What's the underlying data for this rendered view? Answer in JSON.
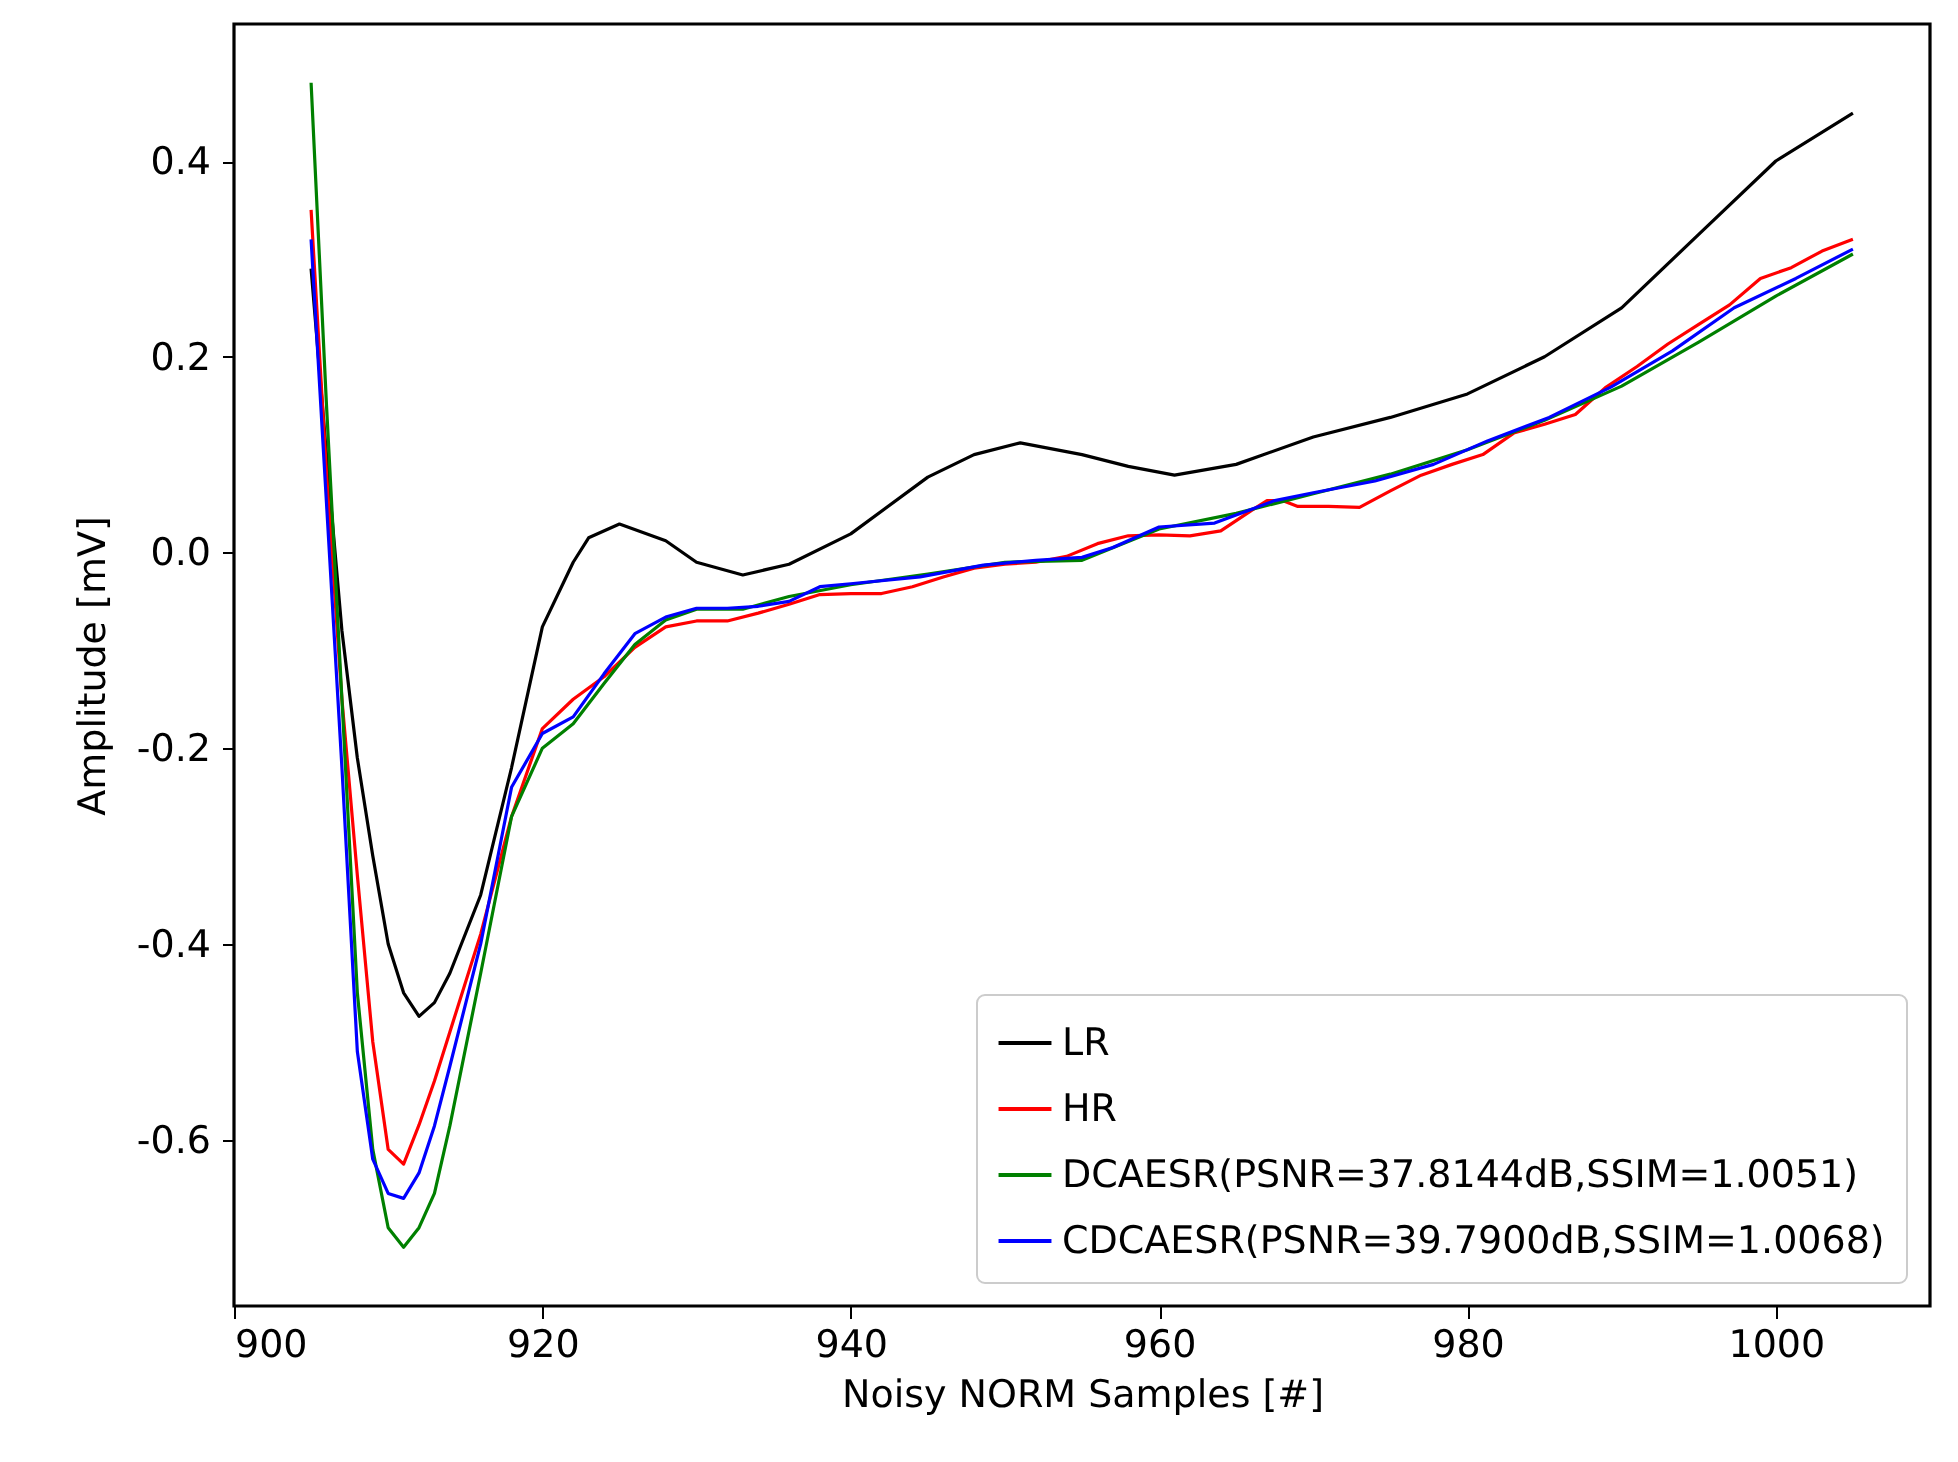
{
  "chart_data": {
    "type": "line",
    "xlabel": "Noisy NORM Samples [#]",
    "ylabel": "Amplitude [mV]",
    "xlim": [
      900,
      1010
    ],
    "xticks": [
      900,
      920,
      940,
      960,
      980,
      {
        "value": 1000,
        "label": "1000"
      }
    ],
    "ylim": [
      -0.77,
      0.54
    ],
    "yticks": [
      {
        "value": -0.6,
        "label": "-0.6"
      },
      {
        "value": -0.4,
        "label": "-0.4"
      },
      {
        "value": -0.2,
        "label": "-0.2"
      },
      {
        "value": 0,
        "label": "0.0"
      },
      {
        "value": 0.2,
        "label": "0.2"
      },
      {
        "value": 0.4,
        "label": "0.4"
      }
    ],
    "grid": false,
    "legend": "bottom right",
    "line_style": "solid",
    "marker": "none",
    "series": [
      {
        "name": "LR",
        "color": "#000000",
        "x": [
          905,
          906,
          907,
          908,
          909,
          910,
          911,
          912,
          913,
          914,
          916,
          918,
          920,
          922,
          923,
          925,
          928,
          930,
          933,
          936,
          940,
          945,
          948,
          951,
          955,
          958,
          961,
          965,
          970,
          975,
          980,
          985,
          990,
          995,
          1000,
          1005
        ],
        "values": [
          0.29,
          0.1,
          -0.08,
          -0.21,
          -0.31,
          -0.4,
          -0.45,
          -0.474,
          -0.46,
          -0.43,
          -0.35,
          -0.22,
          -0.076,
          -0.01,
          0.015,
          0.029,
          0.012,
          -0.01,
          -0.023,
          -0.012,
          0.019,
          0.077,
          0.1,
          0.112,
          0.1,
          0.088,
          0.079,
          0.09,
          0.118,
          0.138,
          0.162,
          0.2,
          0.25,
          0.325,
          0.4,
          0.449
        ]
      },
      {
        "name": "HR",
        "color": "#ff0000",
        "x": [
          905,
          906,
          907,
          908,
          909,
          910,
          911,
          912,
          913,
          914,
          916,
          918,
          920,
          922,
          924,
          926,
          928,
          930,
          932,
          934,
          936,
          938,
          940,
          942,
          944,
          946,
          948,
          950,
          952,
          954,
          956,
          958,
          960,
          962,
          964,
          966,
          967,
          968,
          969,
          971,
          973,
          975,
          977,
          979,
          981,
          983,
          985,
          987,
          989,
          991,
          993,
          995,
          997,
          999,
          1001,
          1003,
          1005
        ],
        "values": [
          0.35,
          0.08,
          -0.15,
          -0.33,
          -0.5,
          -0.61,
          -0.625,
          -0.585,
          -0.54,
          -0.49,
          -0.39,
          -0.27,
          -0.18,
          -0.15,
          -0.127,
          -0.097,
          -0.076,
          -0.07,
          -0.07,
          -0.062,
          -0.053,
          -0.043,
          -0.042,
          -0.042,
          -0.035,
          -0.025,
          -0.016,
          -0.012,
          -0.01,
          -0.004,
          0.009,
          0.017,
          0.018,
          0.017,
          0.022,
          0.043,
          0.053,
          0.053,
          0.047,
          0.047,
          0.046,
          0.063,
          0.079,
          0.09,
          0.1,
          0.122,
          0.131,
          0.141,
          0.169,
          0.19,
          0.213,
          0.233,
          0.253,
          0.28,
          0.291,
          0.308,
          0.32
        ]
      },
      {
        "name": "DCAESR(PSNR=37.8144dB,SSIM=1.0051)",
        "color": "#008000",
        "x": [
          905,
          906,
          907,
          908,
          909,
          910,
          911,
          912,
          913,
          914,
          916,
          918,
          920,
          922,
          924,
          926,
          928,
          930,
          933,
          936,
          940,
          945,
          950,
          955,
          960,
          965,
          970,
          975,
          980,
          985,
          990,
          995,
          1000,
          1005
        ],
        "values": [
          0.48,
          0.15,
          -0.15,
          -0.45,
          -0.61,
          -0.69,
          -0.71,
          -0.69,
          -0.655,
          -0.586,
          -0.43,
          -0.27,
          -0.2,
          -0.175,
          -0.134,
          -0.094,
          -0.069,
          -0.058,
          -0.058,
          -0.045,
          -0.033,
          -0.022,
          -0.01,
          -0.008,
          0.024,
          0.04,
          0.06,
          0.08,
          0.105,
          0.135,
          0.17,
          0.215,
          0.262,
          0.305
        ]
      },
      {
        "name": "CDCAESR(PSNR=39.7900dB,SSIM=1.0068)",
        "color": "#0000ff",
        "x": [
          905,
          906,
          907,
          908,
          909,
          910,
          911,
          912,
          913,
          914,
          916,
          918,
          920,
          922,
          924,
          926,
          928,
          930,
          932,
          934,
          936,
          938,
          940,
          944.5,
          948.6,
          952,
          955,
          957,
          960,
          963.6,
          967.5,
          970,
          974,
          977.8,
          981.3,
          985.3,
          989.3,
          993.3,
          997.3,
          1001.3,
          1005
        ],
        "values": [
          0.32,
          0.05,
          -0.22,
          -0.51,
          -0.62,
          -0.655,
          -0.66,
          -0.634,
          -0.586,
          -0.525,
          -0.4,
          -0.24,
          -0.185,
          -0.168,
          -0.124,
          -0.083,
          -0.066,
          -0.057,
          -0.057,
          -0.055,
          -0.05,
          -0.035,
          -0.032,
          -0.025,
          -0.013,
          -0.008,
          -0.005,
          0.005,
          0.026,
          0.03,
          0.053,
          0.061,
          0.073,
          0.09,
          0.114,
          0.138,
          0.169,
          0.206,
          0.25,
          0.28,
          0.31
        ]
      }
    ]
  }
}
